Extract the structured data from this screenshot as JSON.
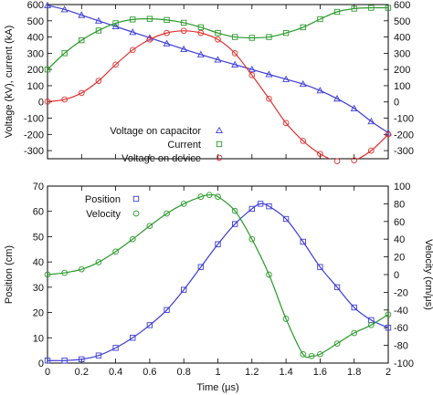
{
  "chart_data": [
    {
      "type": "line",
      "xlabel": "",
      "ylabel": "Voltage (kV), current (kA)",
      "xlim": [
        0,
        2
      ],
      "ylim": [
        -350,
        600
      ],
      "xticks": [
        0,
        0.2,
        0.4,
        0.6,
        0.8,
        1,
        1.2,
        1.4,
        1.6,
        1.8,
        2
      ],
      "yticks": [
        -300,
        -200,
        -100,
        0,
        100,
        200,
        300,
        400,
        500,
        600
      ],
      "yticks_right": [
        -300,
        -200,
        -100,
        0,
        100,
        200,
        300,
        400,
        500,
        600
      ],
      "legend": "lower-right",
      "series": [
        {
          "name": "Voltage on capacitor",
          "color": "#3b3bd8",
          "marker": "triangle",
          "x": [
            0,
            0.1,
            0.2,
            0.3,
            0.4,
            0.5,
            0.6,
            0.7,
            0.8,
            0.9,
            1.0,
            1.1,
            1.2,
            1.3,
            1.4,
            1.5,
            1.6,
            1.7,
            1.8,
            1.9,
            2.0
          ],
          "values": [
            595,
            570,
            535,
            500,
            465,
            430,
            395,
            360,
            325,
            292,
            260,
            230,
            200,
            170,
            140,
            110,
            70,
            20,
            -40,
            -120,
            -190
          ]
        },
        {
          "name": "Current",
          "color": "#2a9a2a",
          "marker": "square",
          "x": [
            0,
            0.1,
            0.2,
            0.3,
            0.4,
            0.5,
            0.6,
            0.7,
            0.8,
            0.9,
            1.0,
            1.1,
            1.2,
            1.3,
            1.4,
            1.5,
            1.6,
            1.7,
            1.8,
            1.9,
            2.0
          ],
          "values": [
            200,
            300,
            380,
            440,
            485,
            508,
            512,
            505,
            488,
            460,
            425,
            400,
            395,
            400,
            425,
            460,
            510,
            555,
            575,
            580,
            580
          ]
        },
        {
          "name": "Voltage on device",
          "color": "#e03030",
          "marker": "circle",
          "x": [
            0,
            0.1,
            0.2,
            0.3,
            0.4,
            0.5,
            0.6,
            0.7,
            0.8,
            0.9,
            1.0,
            1.1,
            1.2,
            1.3,
            1.4,
            1.5,
            1.6,
            1.7,
            1.8,
            1.9,
            2.0
          ],
          "values": [
            2,
            15,
            55,
            130,
            230,
            320,
            385,
            425,
            438,
            425,
            385,
            300,
            165,
            20,
            -130,
            -240,
            -320,
            -365,
            -360,
            -300,
            -200
          ]
        }
      ]
    },
    {
      "type": "line",
      "xlabel": "Time (μs)",
      "ylabel": "Position (cm)",
      "ylabel_right": "Velocity (cm/μs)",
      "xlim": [
        0,
        2
      ],
      "ylim": [
        0,
        70
      ],
      "ylim_right": [
        -100,
        100
      ],
      "xticks": [
        0,
        0.2,
        0.4,
        0.6,
        0.8,
        1,
        1.2,
        1.4,
        1.6,
        1.8,
        2
      ],
      "yticks": [
        0,
        10,
        20,
        30,
        40,
        50,
        60,
        70
      ],
      "yticks_right": [
        -100,
        -80,
        -60,
        -40,
        -20,
        0,
        20,
        40,
        60,
        80,
        100
      ],
      "legend": "top-left",
      "series": [
        {
          "name": "Position",
          "axis": "left",
          "color": "#3b3bd8",
          "marker": "square",
          "x": [
            0,
            0.1,
            0.2,
            0.3,
            0.4,
            0.5,
            0.6,
            0.7,
            0.8,
            0.9,
            1.0,
            1.1,
            1.2,
            1.25,
            1.3,
            1.4,
            1.5,
            1.6,
            1.7,
            1.8,
            1.9,
            2.0
          ],
          "values": [
            1,
            1,
            1.5,
            3,
            6,
            10,
            15,
            21,
            29,
            38,
            47,
            55,
            61,
            63,
            62,
            57,
            48,
            38,
            30,
            22,
            17,
            14
          ]
        },
        {
          "name": "Velocity",
          "axis": "right",
          "color": "#2a9a2a",
          "marker": "circle",
          "x": [
            0,
            0.1,
            0.2,
            0.3,
            0.4,
            0.5,
            0.6,
            0.7,
            0.8,
            0.9,
            0.95,
            1.0,
            1.1,
            1.2,
            1.3,
            1.4,
            1.5,
            1.55,
            1.6,
            1.7,
            1.8,
            1.9,
            2.0
          ],
          "values": [
            0,
            2,
            6,
            14,
            26,
            40,
            55,
            69,
            80,
            88,
            90,
            88,
            72,
            40,
            0,
            -50,
            -90,
            -92,
            -90,
            -78,
            -66,
            -57,
            -45
          ]
        }
      ]
    }
  ]
}
